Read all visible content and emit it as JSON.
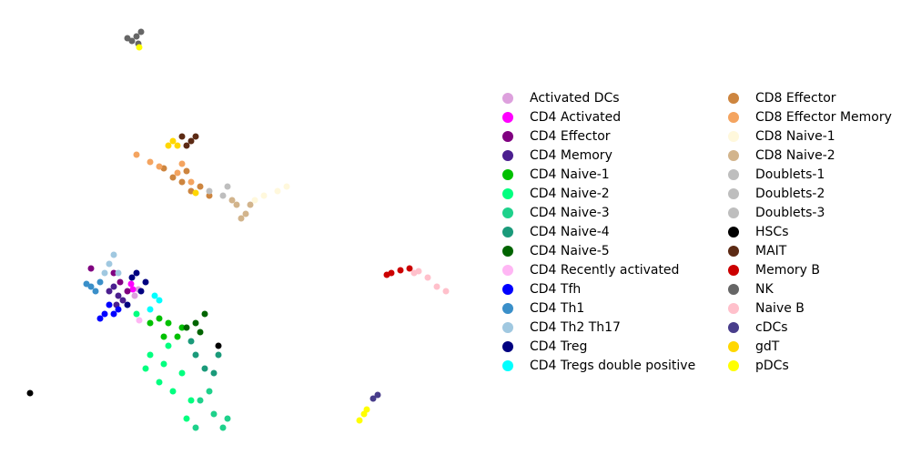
{
  "chart_data": {
    "type": "scatter",
    "series": [
      {
        "name": "Activated DCs",
        "color": "#dda0dd",
        "x": [
          14.8,
          15.2
        ],
        "y": [
          18.6,
          19.3
        ]
      },
      {
        "name": "CD4 Activated",
        "color": "#ff00ff",
        "x": [
          14.6,
          14.4
        ],
        "y": [
          19.3,
          19.9
        ]
      },
      {
        "name": "CD4 Effector",
        "color": "#800080",
        "x": [
          10,
          12.5,
          14,
          13.2
        ],
        "y": [
          21.6,
          21.1,
          19.1,
          20.1
        ]
      },
      {
        "name": "CD4 Memory",
        "color": "#4b1f8f",
        "x": [
          12.5,
          13,
          12,
          13.5,
          12.8
        ],
        "y": [
          19.6,
          18.6,
          19.1,
          18.1,
          17.6
        ]
      },
      {
        "name": "CD4 Naive-1",
        "color": "#00c000",
        "x": [
          18.5,
          17.5,
          19.5,
          18,
          20,
          16.5
        ],
        "y": [
          15.6,
          16.1,
          14.1,
          14.1,
          15.1,
          15.6
        ]
      },
      {
        "name": "CD4 Naive-2",
        "color": "#00ff7f",
        "x": [
          16.5,
          18,
          17.5,
          19,
          20,
          21,
          16,
          18.5,
          15,
          20.5
        ],
        "y": [
          12.1,
          11.1,
          9.1,
          8.1,
          10.1,
          7.1,
          10.6,
          13.1,
          16.6,
          5.1
        ]
      },
      {
        "name": "CD4 Naive-3",
        "color": "#1ed18b",
        "x": [
          22,
          23.5,
          24.5,
          23,
          21.5,
          25
        ],
        "y": [
          7.1,
          5.6,
          4.1,
          8.1,
          4.1,
          5.1
        ]
      },
      {
        "name": "CD4 Naive-4",
        "color": "#1a9a7a",
        "x": [
          21.5,
          22.5,
          23.5,
          24,
          21
        ],
        "y": [
          12.1,
          10.6,
          10.1,
          12.1,
          13.6
        ]
      },
      {
        "name": "CD4 Naive-5",
        "color": "#006400",
        "x": [
          21.5,
          22.5,
          22,
          20.5
        ],
        "y": [
          15.6,
          16.6,
          14.6,
          15.1
        ]
      },
      {
        "name": "CD4 Recently activated",
        "color": "#ffb6f4",
        "x": [
          15.3
        ],
        "y": [
          15.9
        ]
      },
      {
        "name": "CD4 Tfh",
        "color": "#0000ff",
        "x": [
          11.5,
          12.5,
          11,
          13,
          12
        ],
        "y": [
          16.6,
          16.6,
          16.1,
          17.1,
          17.6
        ]
      },
      {
        "name": "CD4 Th1",
        "color": "#3a8fc9",
        "x": [
          10,
          10.5,
          11,
          9.5
        ],
        "y": [
          19.6,
          19.1,
          20.1,
          19.9
        ]
      },
      {
        "name": "CD4 Th2 Th17",
        "color": "#a0c8e0",
        "x": [
          12,
          12.5,
          13,
          11.5
        ],
        "y": [
          22.1,
          23.1,
          21.1,
          21.1
        ]
      },
      {
        "name": "CD4 Treg",
        "color": "#000080",
        "x": [
          15,
          16,
          14.5,
          15.5,
          14
        ],
        "y": [
          21.1,
          20.1,
          20.6,
          19.1,
          17.6
        ]
      },
      {
        "name": "CD4 Tregs double positive",
        "color": "#00ffff",
        "x": [
          17,
          16.5,
          17.5
        ],
        "y": [
          18.6,
          17.1,
          18.1
        ]
      },
      {
        "name": "CD8 Effector",
        "color": "#cd853f",
        "x": [
          20,
          21,
          19,
          23,
          22,
          20.5,
          18
        ],
        "y": [
          31.1,
          30.1,
          31.6,
          29.6,
          30.6,
          32.3,
          32.6
        ]
      },
      {
        "name": "CD8 Effector Memory",
        "color": "#f4a460",
        "x": [
          15,
          16.5,
          17.5,
          19.5,
          20,
          21
        ],
        "y": [
          34.1,
          33.3,
          32.8,
          32.1,
          33.1,
          31.1
        ]
      },
      {
        "name": "CD8 Naive-1",
        "color": "#fff8dc",
        "x": [
          29,
          30.5,
          31.5,
          28
        ],
        "y": [
          29.6,
          30.1,
          30.6,
          29.1
        ]
      },
      {
        "name": "CD8 Naive-2",
        "color": "#d2b48c",
        "x": [
          26,
          27,
          27.5,
          26.5,
          25.5
        ],
        "y": [
          28.6,
          27.6,
          28.6,
          27.1,
          29.1
        ]
      },
      {
        "name": "Doublets-1",
        "color": "#bebebe",
        "x": [
          24.5
        ],
        "y": [
          29.6
        ]
      },
      {
        "name": "Doublets-2",
        "color": "#bebebe",
        "x": [
          23
        ],
        "y": [
          30.1
        ]
      },
      {
        "name": "Doublets-3",
        "color": "#bebebe",
        "x": [
          25
        ],
        "y": [
          30.6
        ]
      },
      {
        "name": "HSCs",
        "color": "#000000",
        "x": [
          3.3,
          24
        ],
        "y": [
          7.9,
          13.1
        ]
      },
      {
        "name": "MAIT",
        "color": "#5c2a14",
        "x": [
          20,
          21,
          21.5,
          20.5
        ],
        "y": [
          36.1,
          35.6,
          36.1,
          35.1
        ]
      },
      {
        "name": "Memory B",
        "color": "#cc0000",
        "x": [
          43,
          44,
          42.5,
          45
        ],
        "y": [
          21.1,
          21.4,
          20.9,
          21.6
        ]
      },
      {
        "name": "NK",
        "color": "#666666",
        "x": [
          14.5,
          15,
          15.5,
          14,
          15.2
        ],
        "y": [
          46.6,
          47.1,
          47.6,
          46.9,
          46.3
        ]
      },
      {
        "name": "Naive B",
        "color": "#ffc0cb",
        "x": [
          45.5,
          47,
          48,
          49,
          46
        ],
        "y": [
          21.1,
          20.6,
          19.6,
          19.1,
          21.3
        ]
      },
      {
        "name": "cDCs",
        "color": "#483d8b",
        "x": [
          41,
          41.5
        ],
        "y": [
          7.3,
          7.7
        ]
      },
      {
        "name": "gdT",
        "color": "#ffd700",
        "x": [
          19,
          18.5,
          21.5,
          19.5
        ],
        "y": [
          35.6,
          35.1,
          29.9,
          35.1
        ]
      },
      {
        "name": "pDCs",
        "color": "#ffff00",
        "x": [
          39.5,
          40,
          40.3,
          15.3
        ],
        "y": [
          4.9,
          5.6,
          6.1,
          45.9
        ]
      }
    ]
  }
}
